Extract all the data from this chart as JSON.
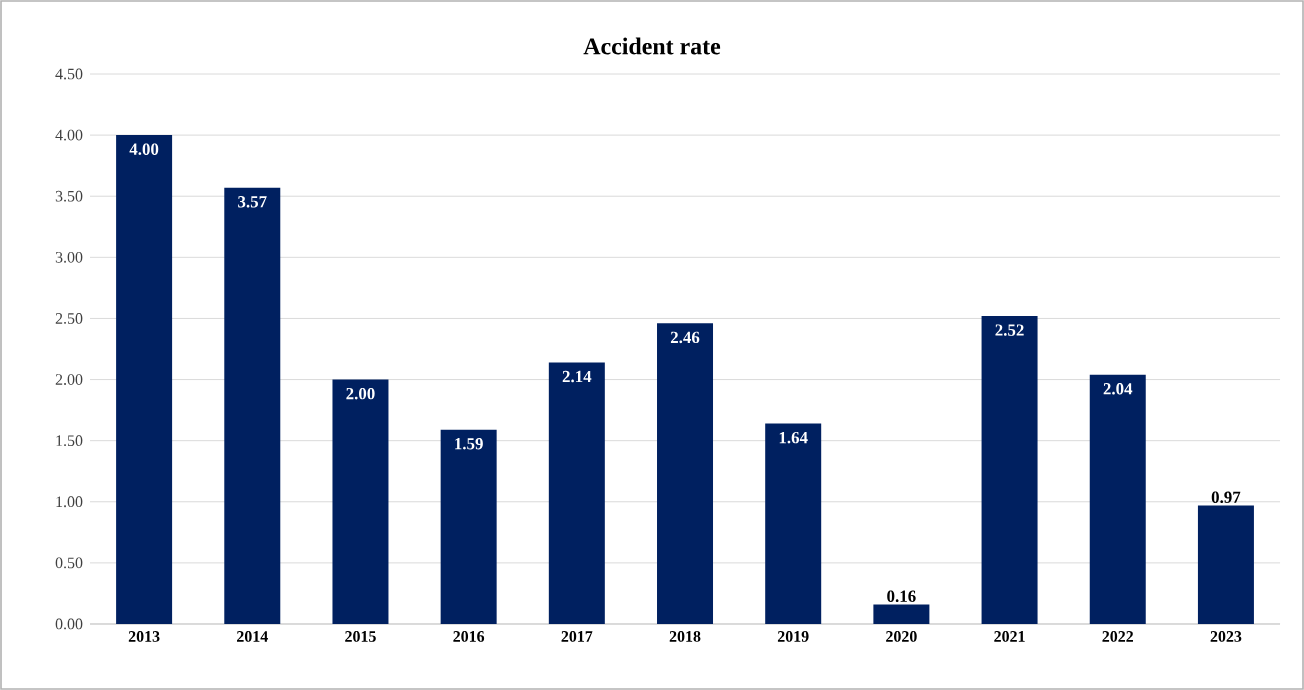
{
  "chart_data": {
    "type": "bar",
    "title": "Accident rate",
    "categories": [
      "2013",
      "2014",
      "2015",
      "2016",
      "2017",
      "2018",
      "2019",
      "2020",
      "2021",
      "2022",
      "2023"
    ],
    "values": [
      4.0,
      3.57,
      2.0,
      1.59,
      2.14,
      2.46,
      1.64,
      0.16,
      2.52,
      2.04,
      0.97
    ],
    "value_labels": [
      "4.00",
      "3.57",
      "2.00",
      "1.59",
      "2.14",
      "2.46",
      "1.64",
      "0.16",
      "2.52",
      "2.04",
      "0.97"
    ],
    "color": "#002060",
    "ylim": [
      0,
      4.5
    ],
    "yticks": [
      {
        "value": 0,
        "label": "0.00"
      },
      {
        "value": 0.5,
        "label": "0.50"
      },
      {
        "value": 1,
        "label": "1.00"
      },
      {
        "value": 1.5,
        "label": "1.50"
      },
      {
        "value": 2,
        "label": "2.00"
      },
      {
        "value": 2.5,
        "label": "2.50"
      },
      {
        "value": 3,
        "label": "3.00"
      },
      {
        "value": 3.5,
        "label": "3.50"
      },
      {
        "value": 4,
        "label": "4.00"
      },
      {
        "value": 4.5,
        "label": "4.50"
      }
    ],
    "grid": "y"
  }
}
